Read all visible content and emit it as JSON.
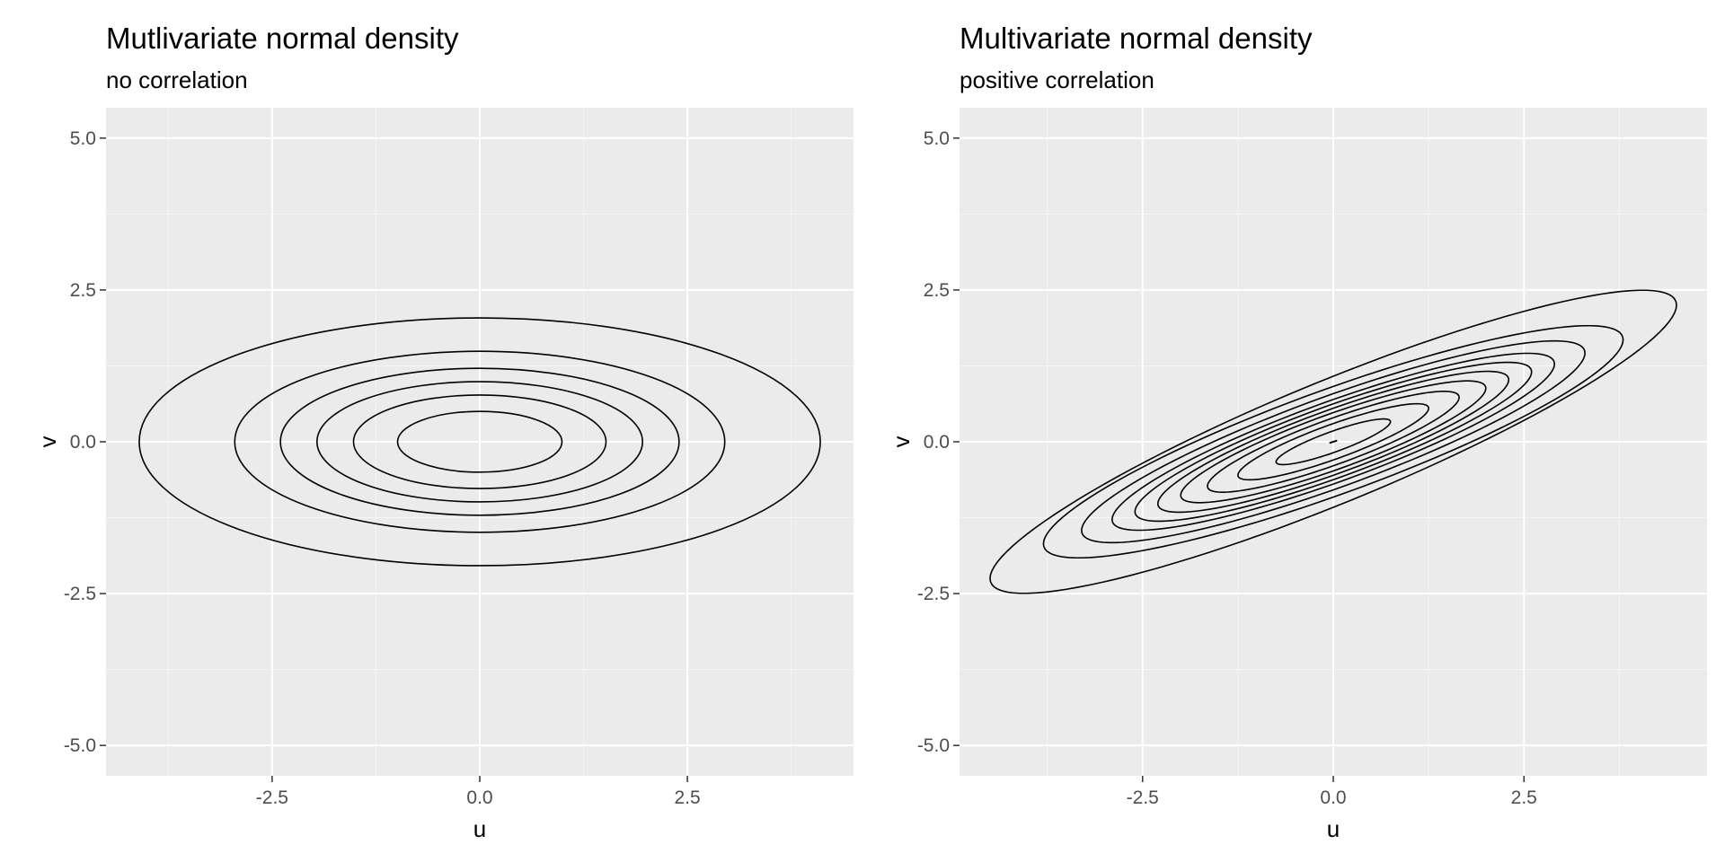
{
  "chart_data": [
    {
      "type": "contour",
      "title": "Mutlivariate normal density",
      "subtitle": "no correlation",
      "xlabel": "u",
      "ylabel": "v",
      "xlim": [
        -4.5,
        4.5
      ],
      "ylim": [
        -5.5,
        5.5
      ],
      "x_ticks": [
        -2.5,
        0.0,
        2.5
      ],
      "x_tick_labels": [
        "-2.5",
        "0.0",
        "2.5"
      ],
      "y_ticks": [
        -5.0,
        -2.5,
        0.0,
        2.5,
        5.0
      ],
      "y_tick_labels": [
        "-5.0",
        "-2.5",
        "0.0",
        "2.5",
        "5.0"
      ],
      "grid": true,
      "center": [
        0,
        0
      ],
      "correlation": 0,
      "contours": [
        {
          "semi_x": 0.99,
          "semi_y": 0.5
        },
        {
          "semi_x": 1.52,
          "semi_y": 0.77
        },
        {
          "semi_x": 1.96,
          "semi_y": 0.99
        },
        {
          "semi_x": 2.4,
          "semi_y": 1.21
        },
        {
          "semi_x": 2.95,
          "semi_y": 1.49
        },
        {
          "semi_x": 4.1,
          "semi_y": 2.04
        }
      ]
    },
    {
      "type": "contour",
      "title": "Multivariate normal density",
      "subtitle": "positive correlation",
      "xlabel": "u",
      "ylabel": "v",
      "xlim": [
        -4.9,
        4.9
      ],
      "ylim": [
        -5.5,
        5.5
      ],
      "x_ticks": [
        -2.5,
        0.0,
        2.5
      ],
      "x_tick_labels": [
        "-2.5",
        "0.0",
        "2.5"
      ],
      "y_ticks": [
        -5.0,
        -2.5,
        0.0,
        2.5,
        5.0
      ],
      "y_tick_labels": [
        "-5.0",
        "-2.5",
        "0.0",
        "2.5",
        "5.0"
      ],
      "grid": true,
      "center": [
        0,
        0
      ],
      "correlation": "positive",
      "contours": [
        {
          "extreme_u": 0.05,
          "extreme_v": 0.02
        },
        {
          "extreme_u": 0.75,
          "extreme_v": 0.33
        },
        {
          "extreme_u": 1.25,
          "extreme_v": 0.55
        },
        {
          "extreme_u": 1.65,
          "extreme_v": 0.73
        },
        {
          "extreme_u": 2.0,
          "extreme_v": 0.88
        },
        {
          "extreme_u": 2.3,
          "extreme_v": 1.02
        },
        {
          "extreme_u": 2.6,
          "extreme_v": 1.15
        },
        {
          "extreme_u": 2.9,
          "extreme_v": 1.28
        },
        {
          "extreme_u": 3.3,
          "extreme_v": 1.46
        },
        {
          "extreme_u": 3.8,
          "extreme_v": 1.68
        },
        {
          "extreme_u": 4.5,
          "extreme_v": 2.25
        }
      ]
    }
  ],
  "colors": {
    "panel_background": "#ebebeb",
    "grid_major": "#ffffff",
    "grid_minor": "#f5f5f5",
    "contour": "#000000",
    "tick_text": "#4d4d4d",
    "tick_mark": "#333333"
  }
}
